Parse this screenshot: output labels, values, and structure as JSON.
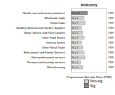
{
  "chart_data": {
    "type": "bar",
    "orientation": "horizontal",
    "title": "Industry",
    "x_label": "Proportionate Mortality Ratio (PMR)",
    "categories": [
      "Health care and social assistance",
      "Wholesale trade",
      "Retail trade",
      "Building Material and Garden Supplies",
      "Motor Vehicle and Parts Dealers",
      "Other Food Stores",
      "Grocery Stores",
      "Other Retail Trade",
      "Educational and Family Services",
      "Other professional services",
      "Personal and laundry services",
      "Manufacturing"
    ],
    "series": [
      {
        "name": "Non-sig",
        "color": "#d0d0d0",
        "values": [
          null,
          1.1,
          1.2,
          0.9,
          1.0,
          1.1,
          0.9,
          1.0,
          1.1,
          1.2,
          0.8,
          1.0
        ]
      },
      {
        "name": "Sig",
        "color": "#8a8a8a",
        "values": [
          1.4,
          null,
          null,
          null,
          null,
          null,
          null,
          null,
          null,
          null,
          null,
          null
        ]
      }
    ],
    "count_labels": [
      "N = 24",
      "N = 6",
      "N = 9",
      "N = 3",
      "N = 4",
      "N = 5",
      "N = 7",
      "N = 3",
      "N = 5",
      "N = 4",
      "N = 3",
      "N = 6"
    ],
    "right_labels": [
      "PMR",
      "PMR",
      "PMR",
      "PMR",
      "PMR",
      "PMR",
      "PMR",
      "PMR",
      "PMR",
      "PMR",
      "PMR",
      "PMR"
    ],
    "xlim": [
      0,
      3
    ],
    "xticks": [],
    "tick_labels": "y",
    "grid": false,
    "legend": "bottom-right"
  }
}
